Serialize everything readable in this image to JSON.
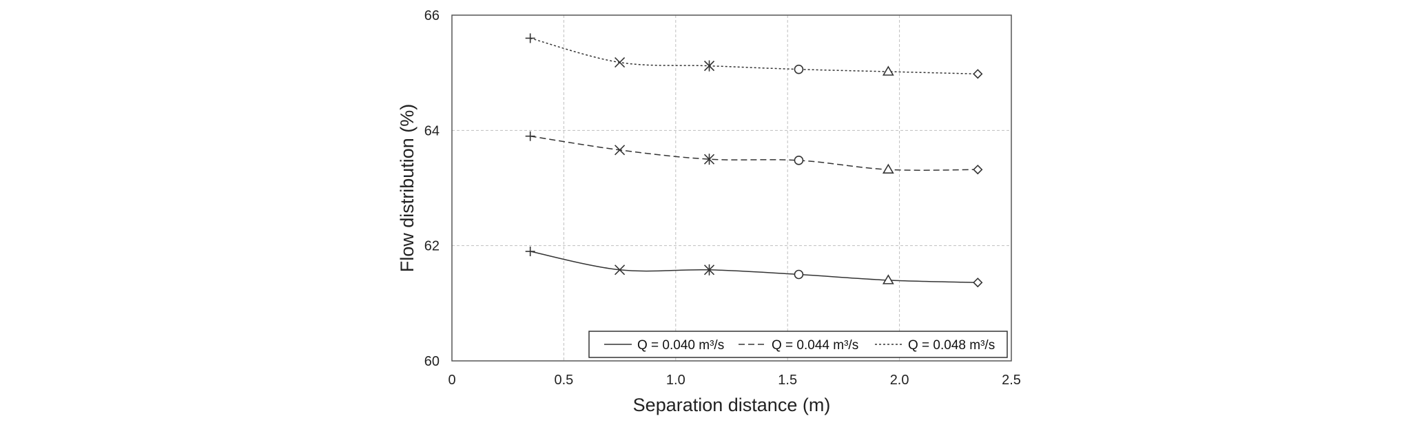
{
  "chart_data": {
    "type": "line",
    "xlabel": "Separation distance (m)",
    "ylabel": "Flow distribution (%)",
    "xlim": [
      0,
      2.5
    ],
    "ylim": [
      60,
      66
    ],
    "xticks": [
      0,
      0.5,
      1.0,
      1.5,
      2.0,
      2.5
    ],
    "xtick_labels": [
      "0",
      "0.5",
      "1.0",
      "1.5",
      "2.0",
      "2.5"
    ],
    "yticks": [
      60,
      62,
      64,
      66
    ],
    "ytick_labels": [
      "60",
      "62",
      "64",
      "66"
    ],
    "grid": true,
    "legend_position": "bottom-right",
    "x": [
      0.35,
      0.75,
      1.15,
      1.55,
      1.95,
      2.35
    ],
    "markers": [
      "plus",
      "cross",
      "asterisk",
      "circle",
      "triangle",
      "diamond"
    ],
    "series": [
      {
        "name": "Q = 0.040 m³/s",
        "line_style": "solid",
        "values": [
          61.9,
          61.58,
          61.58,
          61.5,
          61.4,
          61.36
        ]
      },
      {
        "name": "Q = 0.044 m³/s",
        "line_style": "dashed",
        "values": [
          63.9,
          63.66,
          63.5,
          63.48,
          63.32,
          63.32
        ]
      },
      {
        "name": "Q = 0.048 m³/s",
        "line_style": "dotted",
        "values": [
          65.6,
          65.18,
          65.12,
          65.06,
          65.02,
          64.98
        ]
      }
    ],
    "colors": {
      "line": "#333333",
      "grid": "#bfbfbf",
      "frame": "#555555"
    }
  }
}
